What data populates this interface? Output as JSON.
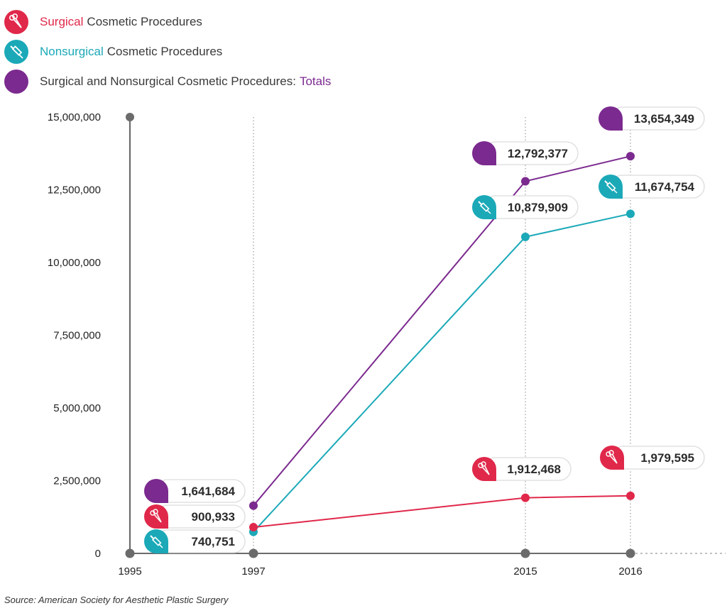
{
  "legend": {
    "surgical": {
      "highlight": "Surgical",
      "rest": "Cosmetic Procedures",
      "icon": "scissors-icon"
    },
    "nonsurgical": {
      "highlight": "Nonsurgical",
      "rest": "Cosmetic Procedures",
      "icon": "syringe-icon"
    },
    "totals": {
      "rest": "Surgical and Nonsurgical Cosmetic Procedures:",
      "highlight": "Totals",
      "icon": "bubble-icon"
    }
  },
  "colors": {
    "surgical": "#e0284a",
    "nonsurgical": "#1ba9b8",
    "totals": "#7b2a8f",
    "axis": "#6b6b6b"
  },
  "source": "Source: American Society for Aesthetic Plastic Surgery",
  "chart_data": {
    "type": "line",
    "title": "",
    "xlabel": "",
    "ylabel": "",
    "x": [
      1995,
      1997,
      2015,
      2016
    ],
    "x_tick_labels": [
      "1995",
      "1997",
      "2015",
      "2016"
    ],
    "y_tick_labels": [
      "0",
      "2,500,000",
      "5,000,000",
      "7,500,000",
      "10,000,000",
      "12,500,000",
      "15,000,000"
    ],
    "y_ticks": [
      0,
      2500000,
      5000000,
      7500000,
      10000000,
      12500000,
      15000000
    ],
    "ylim": [
      0,
      15000000
    ],
    "series": [
      {
        "key": "totals",
        "name": "Surgical and Nonsurgical Cosmetic Procedures: Totals",
        "x": [
          1997,
          2015,
          2016
        ],
        "values": [
          1641684,
          12792377,
          13654349
        ],
        "labels": [
          "1,641,684",
          "12,792,377",
          "13,654,349"
        ]
      },
      {
        "key": "nonsurgical",
        "name": "Nonsurgical Cosmetic Procedures",
        "x": [
          1997,
          2015,
          2016
        ],
        "values": [
          740751,
          10879909,
          11674754
        ],
        "labels": [
          "740,751",
          "10,879,909",
          "11,674,754"
        ]
      },
      {
        "key": "surgical",
        "name": "Surgical Cosmetic Procedures",
        "x": [
          1997,
          2015,
          2016
        ],
        "values": [
          900933,
          1912468,
          1979595
        ],
        "labels": [
          "900,933",
          "1,912,468",
          "1,979,595"
        ]
      }
    ]
  }
}
